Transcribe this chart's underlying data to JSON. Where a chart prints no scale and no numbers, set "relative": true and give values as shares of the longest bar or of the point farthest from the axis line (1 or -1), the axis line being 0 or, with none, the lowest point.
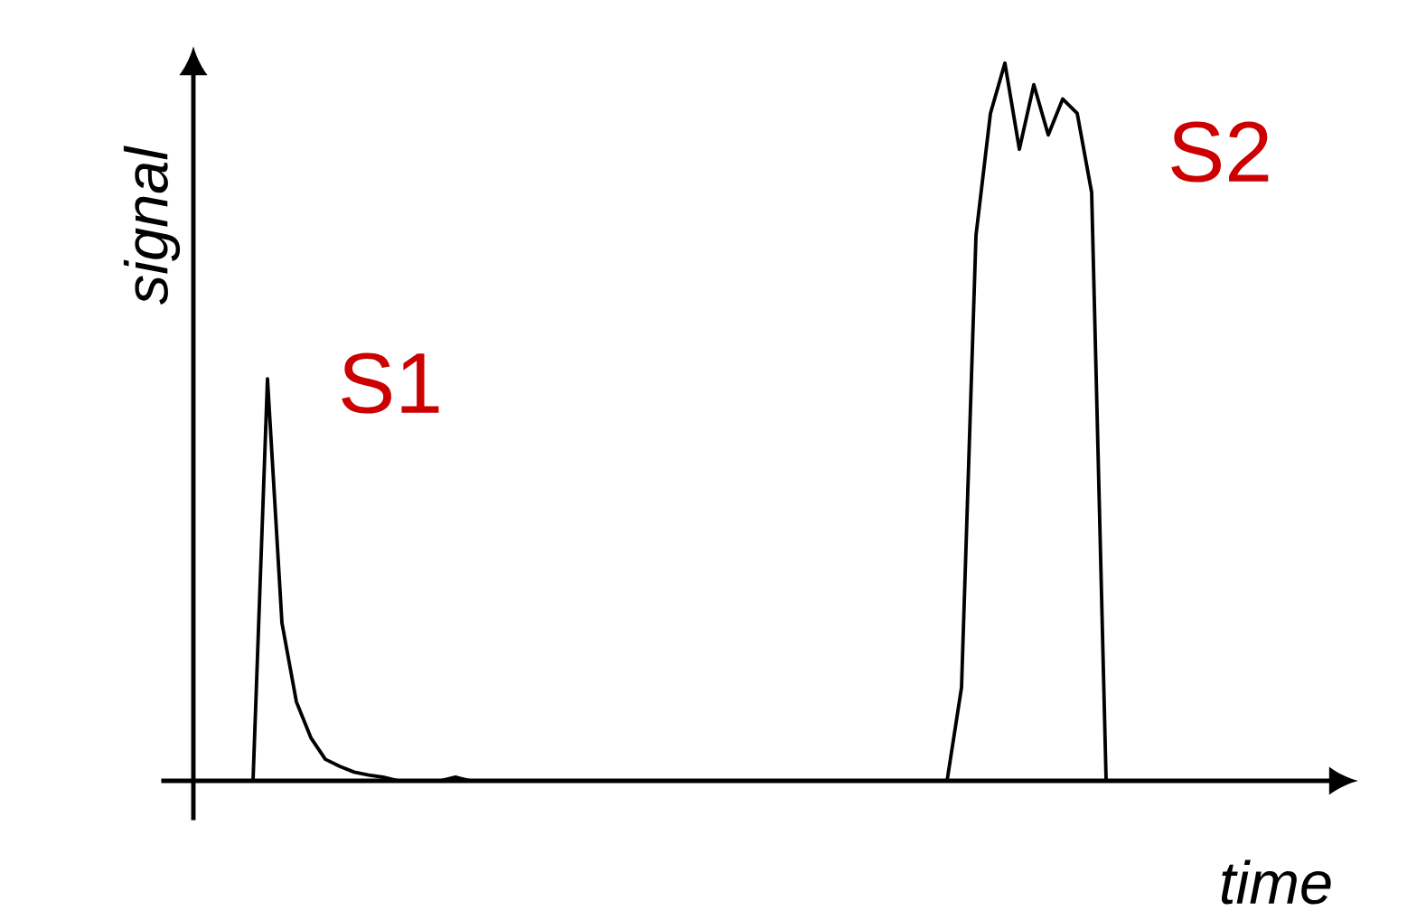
{
  "chart_data": {
    "type": "line",
    "relative": true,
    "xlabel": "time",
    "ylabel": "signal",
    "categories": [
      null,
      null,
      null,
      null,
      null,
      null,
      null,
      null,
      null,
      null,
      null,
      null,
      null,
      null,
      null,
      null,
      null,
      null,
      null,
      null,
      null,
      null,
      null,
      null,
      null,
      null,
      null,
      null,
      null,
      null,
      null,
      null,
      null,
      null,
      null,
      null,
      null,
      null,
      null,
      null,
      null,
      null,
      null,
      null,
      null,
      null,
      null,
      null,
      null,
      null,
      null,
      null,
      null,
      null,
      null,
      null,
      null,
      null,
      null,
      null,
      null
    ],
    "series": [
      {
        "color": "#000000",
        "values": [
          0,
          0.56,
          0.22,
          0.11,
          0.06,
          0.03,
          0.02,
          0.012,
          0.008,
          0.005,
          0,
          0,
          0,
          0,
          0.005,
          0,
          0,
          0,
          0,
          0,
          0,
          0,
          0,
          0,
          0,
          0,
          0,
          0,
          0,
          0,
          0,
          0,
          0,
          0,
          0,
          0,
          0,
          0,
          0,
          0,
          0,
          0,
          0,
          0,
          0,
          0,
          0,
          0,
          0,
          0.13,
          0.76,
          0.93,
          1,
          0.88,
          0.97,
          0.9,
          0.95,
          0.93,
          0.82,
          0,
          0
        ]
      }
    ],
    "annotations": [
      "S1",
      "S2"
    ],
    "marker": "none",
    "line_style": "solid"
  }
}
